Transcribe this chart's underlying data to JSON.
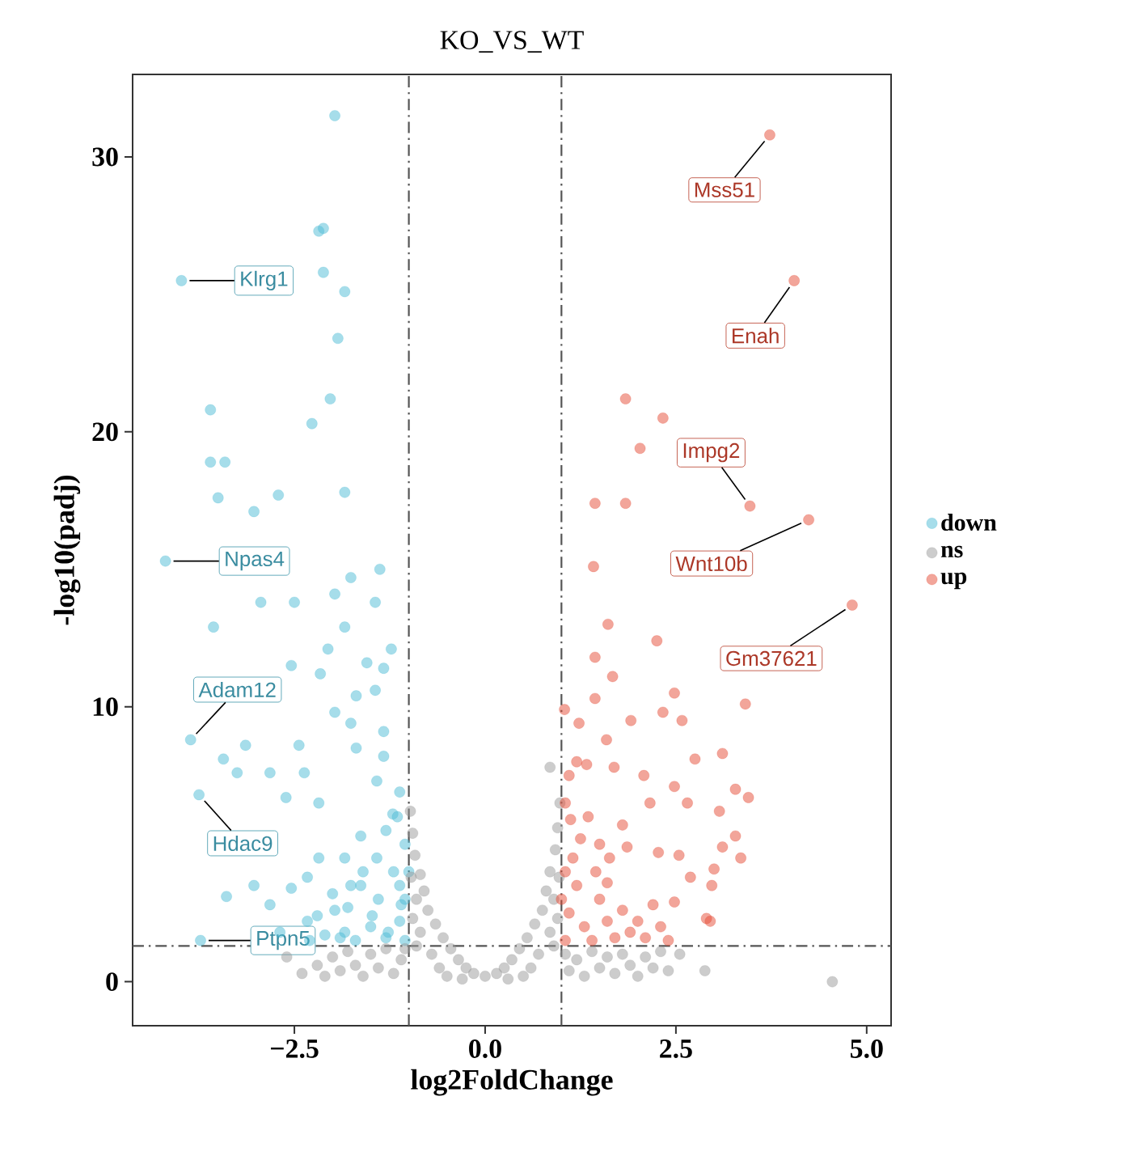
{
  "chart_data": {
    "type": "scatter",
    "title": "KO_VS_WT",
    "xlabel": "log2FoldChange",
    "ylabel": "-log10(padj)",
    "legend": "right",
    "xlim": [
      -4.62,
      5.32
    ],
    "ylim": [
      -1.6,
      33
    ],
    "xticks": [
      {
        "value": -2.5,
        "label": "−2.5"
      },
      {
        "value": 0,
        "label": "0.0"
      },
      {
        "value": 2.5,
        "label": "2.5"
      },
      {
        "value": 5,
        "label": "5.0"
      }
    ],
    "yticks": [
      0,
      10,
      20,
      30
    ],
    "ref_lines": [
      {
        "axis": "x",
        "value": -1,
        "line_style": "dashdot",
        "color": "#555555"
      },
      {
        "axis": "x",
        "value": 1,
        "line_style": "dashdot",
        "color": "#555555"
      },
      {
        "axis": "y",
        "value": 1.3,
        "line_style": "dashdot",
        "color": "#555555"
      }
    ],
    "series": [
      {
        "name": "down",
        "color": "#4dbbd5",
        "x": [
          -1.97,
          -2.18,
          -2.12,
          -3.98,
          -2.12,
          -1.84,
          -1.93,
          -3.6,
          -2.03,
          -2.27,
          -3.6,
          -3.41,
          -3.5,
          -3.03,
          -2.71,
          -1.84,
          -4.19,
          -2.94,
          -2.5,
          -3.56,
          -1.76,
          -1.38,
          -1.97,
          -1.44,
          -1.84,
          -2.06,
          -1.23,
          -1.55,
          -2.54,
          -1.44,
          -1.97,
          -3.86,
          -3.14,
          -2.44,
          -3.43,
          -3.25,
          -2.82,
          -2.37,
          -3.75,
          -1.69,
          -1.33,
          -1.42,
          -2.61,
          -2.18,
          -3.03,
          -3.39,
          -2.82,
          -2.54,
          -2.33,
          -1.84,
          -1.63,
          -1.21,
          -1.12,
          -1.76,
          -1.42,
          -1.12,
          -1.97,
          -1.48,
          -1.12,
          -2.33,
          -1.84,
          -1.27,
          -2.69,
          -1.63,
          -2.18,
          -1.33,
          -1.69,
          -1.33,
          -2.16,
          -1.76,
          -3.73,
          -1.05,
          -1.1,
          -1.2,
          -1.3,
          -1.4,
          -1.5,
          -1.6,
          -1.7,
          -1.8,
          -1.9,
          -2.0,
          -2.1,
          -2.2,
          -2.3,
          -1.05,
          -1.15,
          -1.3,
          -1.0,
          -1.05
        ],
        "values": [
          31.5,
          27.3,
          27.4,
          25.5,
          25.8,
          25.1,
          23.4,
          20.8,
          21.2,
          20.3,
          18.9,
          18.9,
          17.6,
          17.1,
          17.7,
          17.8,
          15.3,
          13.8,
          13.8,
          12.9,
          14.7,
          15.0,
          14.1,
          13.8,
          12.9,
          12.1,
          12.1,
          11.6,
          11.5,
          10.6,
          9.8,
          8.8,
          8.6,
          8.6,
          8.1,
          7.6,
          7.6,
          7.6,
          6.8,
          8.5,
          9.1,
          7.3,
          6.7,
          6.5,
          3.5,
          3.1,
          2.8,
          3.4,
          3.8,
          4.5,
          5.3,
          6.1,
          6.9,
          3.5,
          4.5,
          3.5,
          2.6,
          2.4,
          2.2,
          2.2,
          1.8,
          1.8,
          1.8,
          3.5,
          4.5,
          8.2,
          10.4,
          11.4,
          11.2,
          9.4,
          1.5,
          1.5,
          2.8,
          4.0,
          1.6,
          3.0,
          2.0,
          4.0,
          1.5,
          2.7,
          1.6,
          3.2,
          1.7,
          2.4,
          1.5,
          5.0,
          6.0,
          5.5,
          4.0,
          3.0
        ]
      },
      {
        "name": "ns",
        "color": "#999999",
        "x": [
          -2.4,
          -2.2,
          -2.1,
          -2.0,
          -1.9,
          -1.8,
          -1.7,
          -1.6,
          -1.5,
          -1.4,
          -1.3,
          -1.2,
          -1.1,
          -1.05,
          -0.98,
          -0.95,
          -0.92,
          -0.97,
          -0.85,
          -0.9,
          -0.8,
          -0.95,
          -0.75,
          -0.85,
          -0.65,
          -0.9,
          -0.55,
          -0.7,
          -0.45,
          -0.6,
          -0.35,
          -0.5,
          -0.25,
          -0.15,
          -0.3,
          0.0,
          0.15,
          0.3,
          0.25,
          0.35,
          0.5,
          0.45,
          0.6,
          0.55,
          0.7,
          0.65,
          0.9,
          0.75,
          0.85,
          0.8,
          0.95,
          0.85,
          0.9,
          0.92,
          0.97,
          0.95,
          0.98,
          0.85,
          1.05,
          1.1,
          1.2,
          1.3,
          1.4,
          1.5,
          1.6,
          1.7,
          1.8,
          1.9,
          2.0,
          2.1,
          2.2,
          2.3,
          2.4,
          2.55,
          2.88,
          4.55,
          -2.6
        ],
        "values": [
          0.3,
          0.6,
          0.2,
          0.9,
          0.4,
          1.1,
          0.6,
          0.2,
          1.0,
          0.5,
          1.2,
          0.3,
          0.8,
          1.2,
          6.2,
          5.4,
          4.6,
          3.8,
          3.9,
          3.0,
          3.3,
          2.3,
          2.6,
          1.8,
          2.1,
          1.3,
          1.6,
          1.0,
          1.2,
          0.5,
          0.8,
          0.2,
          0.5,
          0.3,
          0.1,
          0.2,
          0.3,
          0.1,
          0.5,
          0.8,
          0.2,
          1.2,
          0.5,
          1.6,
          1.0,
          2.1,
          1.3,
          2.6,
          1.8,
          3.3,
          2.3,
          4.0,
          3.0,
          4.8,
          3.8,
          5.6,
          6.5,
          7.8,
          1.0,
          0.4,
          0.8,
          0.2,
          1.1,
          0.5,
          0.9,
          0.3,
          1.0,
          0.6,
          0.2,
          0.9,
          0.5,
          1.1,
          0.4,
          1.0,
          0.4,
          0.0,
          0.9
        ]
      },
      {
        "name": "up",
        "color": "#e64b35",
        "x": [
          3.73,
          4.05,
          1.84,
          2.33,
          2.03,
          1.44,
          1.84,
          3.47,
          4.24,
          1.42,
          4.81,
          1.61,
          2.25,
          1.44,
          1.67,
          2.48,
          3.41,
          1.04,
          1.44,
          2.33,
          1.91,
          2.58,
          1.23,
          1.59,
          1.33,
          1.69,
          2.08,
          2.75,
          3.11,
          2.48,
          3.28,
          3.45,
          2.65,
          2.16,
          3.07,
          1.8,
          1.12,
          3.28,
          3.11,
          3.35,
          2.54,
          2.27,
          1.63,
          1.86,
          3.0,
          2.69,
          2.97,
          2.9,
          2.48,
          1.05,
          1.1,
          1.2,
          1.3,
          1.4,
          1.5,
          1.6,
          1.7,
          1.8,
          1.9,
          2.0,
          2.1,
          2.2,
          2.3,
          2.4,
          1.15,
          1.25,
          1.05,
          1.1,
          1.2,
          1.35,
          1.5,
          1.45,
          1.6,
          1.0,
          1.05,
          2.95
        ],
        "values": [
          30.8,
          25.5,
          21.2,
          20.5,
          19.4,
          17.4,
          17.4,
          17.3,
          16.8,
          15.1,
          13.7,
          13.0,
          12.4,
          11.8,
          11.1,
          10.5,
          10.1,
          9.9,
          10.3,
          9.8,
          9.5,
          9.5,
          9.4,
          8.8,
          7.9,
          7.8,
          7.5,
          8.1,
          8.3,
          7.1,
          7.0,
          6.7,
          6.5,
          6.5,
          6.2,
          5.7,
          5.9,
          5.3,
          4.9,
          4.5,
          4.6,
          4.7,
          4.5,
          4.9,
          4.1,
          3.8,
          3.5,
          2.3,
          2.9,
          1.5,
          2.5,
          3.5,
          2.0,
          1.5,
          3.0,
          2.2,
          1.6,
          2.6,
          1.8,
          2.2,
          1.6,
          2.8,
          2.0,
          1.5,
          4.5,
          5.2,
          6.5,
          7.5,
          8.0,
          6.0,
          5.0,
          4.0,
          3.6,
          3.0,
          4.0,
          2.2
        ]
      }
    ],
    "annotations": [
      {
        "text": "Klrg1",
        "x": -3.98,
        "y": 25.5
      },
      {
        "text": "Npas4",
        "x": -4.19,
        "y": 15.3
      },
      {
        "text": "Adam12",
        "x": -3.86,
        "y": 8.8
      },
      {
        "text": "Hdac9",
        "x": -3.75,
        "y": 6.8
      },
      {
        "text": "Ptpn5",
        "x": -3.73,
        "y": 1.5
      },
      {
        "text": "Mss51",
        "x": 3.73,
        "y": 30.8
      },
      {
        "text": "Enah",
        "x": 4.05,
        "y": 25.5
      },
      {
        "text": "Impg2",
        "x": 3.47,
        "y": 17.3
      },
      {
        "text": "Wnt10b",
        "x": 4.24,
        "y": 16.8
      },
      {
        "text": "Gm37621",
        "x": 4.81,
        "y": 13.7
      }
    ]
  }
}
